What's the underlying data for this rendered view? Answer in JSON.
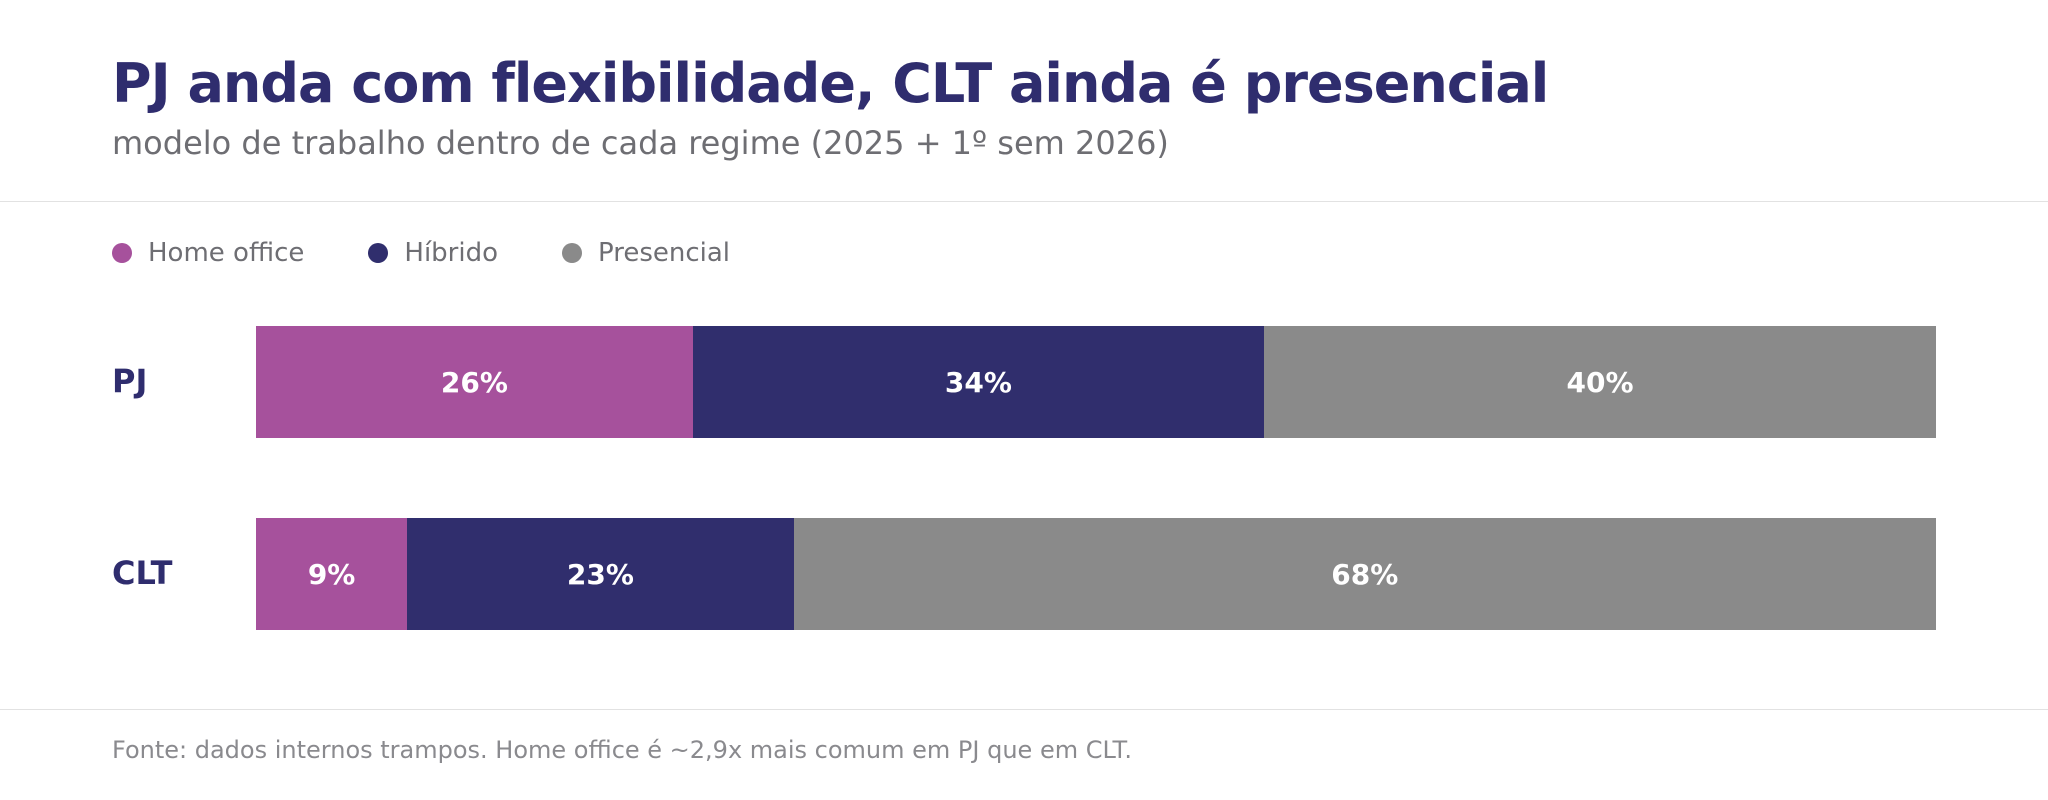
{
  "title": "PJ anda com flexibilidade, CLT ainda é presencial",
  "subtitle": "modelo de trabalho dentro de cada regime (2025 + 1º sem 2026)",
  "footer": "Fonte: dados internos trampos. Home office é ~2,9x mais comum em PJ que em CLT.",
  "chart_data": {
    "type": "bar",
    "orientation": "horizontal",
    "stacked": true,
    "normalized_percent": true,
    "categories": [
      "PJ",
      "CLT"
    ],
    "series": [
      {
        "name": "Home office",
        "color": "#a6519c",
        "values": [
          26,
          9
        ],
        "labels": [
          "26%",
          "9%"
        ]
      },
      {
        "name": "Híbrido",
        "color": "#302e6d",
        "values": [
          34,
          23
        ],
        "labels": [
          "34%",
          "23%"
        ]
      },
      {
        "name": "Presencial",
        "color": "#8a8a8a",
        "values": [
          40,
          68
        ],
        "labels": [
          "40%",
          "68%"
        ]
      }
    ],
    "xlim": [
      0,
      100
    ],
    "grid": false,
    "legend_position": "top-left"
  }
}
